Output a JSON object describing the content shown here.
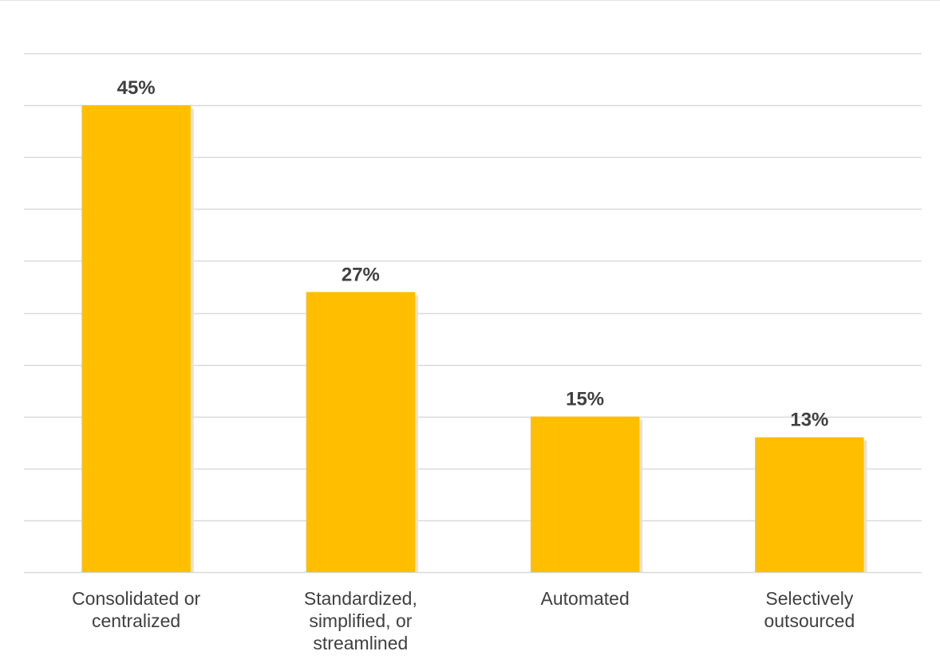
{
  "chart_data": {
    "type": "bar",
    "title": "",
    "xlabel": "",
    "ylabel": "",
    "categories": [
      [
        "Consolidated or",
        "centralized"
      ],
      [
        "Standardized,",
        "simplified, or",
        "streamlined"
      ],
      [
        "Automated"
      ],
      [
        "Selectively",
        "outsourced"
      ]
    ],
    "values": [
      45,
      27,
      15,
      13
    ],
    "data_labels": [
      "45%",
      "27%",
      "15%",
      "13%"
    ],
    "ylim": [
      0,
      50
    ],
    "grid_step": 5,
    "grid": true,
    "y_axis_visible": false,
    "legend": "none",
    "colors": {
      "bar": "#FFBF00",
      "bar_shadow": "#e2e2e2",
      "grid": "#d9d9d9",
      "data_label": "#404040",
      "category_label": "#404040"
    }
  }
}
